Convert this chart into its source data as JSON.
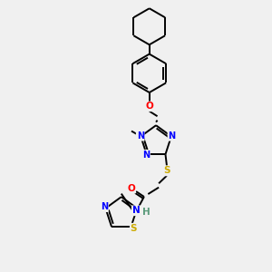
{
  "background_color": "#f0f0f0",
  "bond_color": "#000000",
  "atom_colors": {
    "N": "#0000ff",
    "O": "#ff0000",
    "S": "#ccaa00",
    "C": "#000000",
    "H": "#5a9a7a"
  },
  "line_width": 1.4,
  "fig_size": [
    3.0,
    3.0
  ],
  "dpi": 100
}
